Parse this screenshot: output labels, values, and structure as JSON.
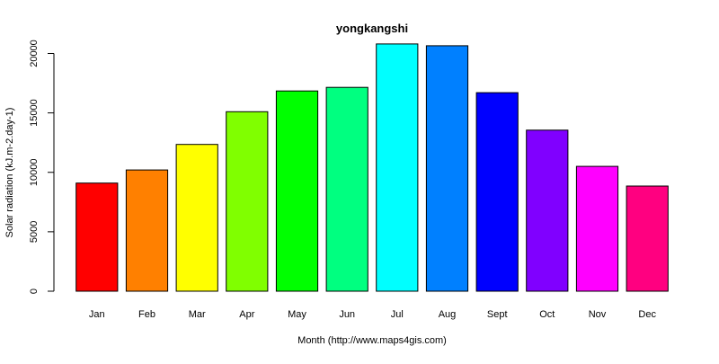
{
  "chart_data": {
    "type": "bar",
    "title": "yongkangshi",
    "xlabel": "Month (http://www.maps4gis.com)",
    "ylabel": "Solar radiation (kJ.m-2.day-1)",
    "categories": [
      "Jan",
      "Feb",
      "Mar",
      "Apr",
      "May",
      "Jun",
      "Jul",
      "Aug",
      "Sept",
      "Oct",
      "Nov",
      "Dec"
    ],
    "values": [
      9100,
      10200,
      12350,
      15100,
      16850,
      17150,
      20800,
      20650,
      16700,
      13550,
      10500,
      8850
    ],
    "colors": [
      "#FF0000",
      "#FF8000",
      "#FFFF00",
      "#80FF00",
      "#00FF00",
      "#00FF80",
      "#00FFFF",
      "#0080FF",
      "#0000FF",
      "#8000FF",
      "#FF00FF",
      "#FF0080"
    ],
    "yticks": [
      0,
      5000,
      10000,
      15000,
      20000
    ],
    "ylim": [
      0,
      22000
    ],
    "grid": false,
    "legend": "none"
  }
}
